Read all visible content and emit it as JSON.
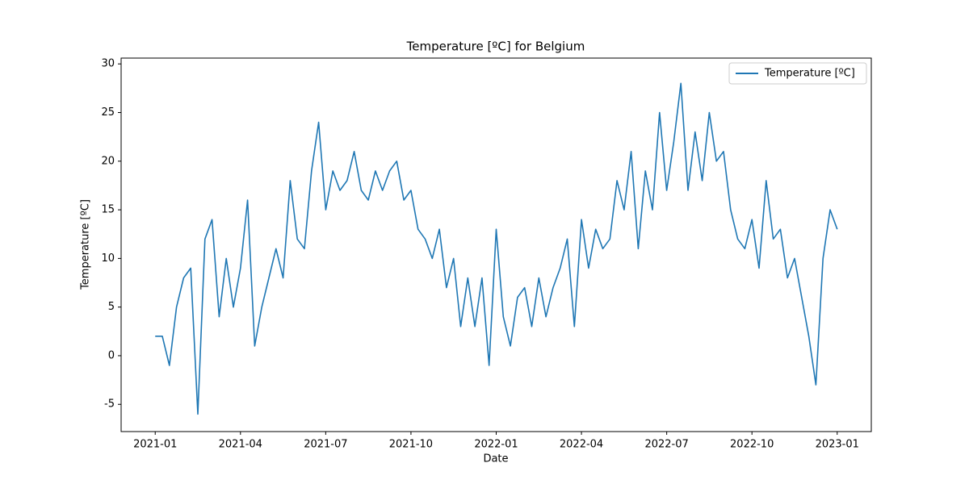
{
  "chart_data": {
    "type": "line",
    "title": "Temperature [ºC] for Belgium",
    "xlabel": "Date",
    "ylabel": "Temperature [ºC]",
    "x": [
      "2021-01",
      "2021-01",
      "2021-01",
      "2021-01",
      "2021-02",
      "2021-02",
      "2021-02",
      "2021-02",
      "2021-03",
      "2021-03",
      "2021-03",
      "2021-03",
      "2021-04",
      "2021-04",
      "2021-04",
      "2021-04",
      "2021-05",
      "2021-05",
      "2021-05",
      "2021-05",
      "2021-06",
      "2021-06",
      "2021-06",
      "2021-06",
      "2021-07",
      "2021-07",
      "2021-07",
      "2021-07",
      "2021-08",
      "2021-08",
      "2021-08",
      "2021-08",
      "2021-09",
      "2021-09",
      "2021-09",
      "2021-09",
      "2021-10",
      "2021-10",
      "2021-10",
      "2021-10",
      "2021-11",
      "2021-11",
      "2021-11",
      "2021-11",
      "2021-12",
      "2021-12",
      "2021-12",
      "2021-12",
      "2022-01",
      "2022-01",
      "2022-01",
      "2022-01",
      "2022-02",
      "2022-02",
      "2022-02",
      "2022-02",
      "2022-03",
      "2022-03",
      "2022-03",
      "2022-03",
      "2022-04",
      "2022-04",
      "2022-04",
      "2022-04",
      "2022-05",
      "2022-05",
      "2022-05",
      "2022-05",
      "2022-06",
      "2022-06",
      "2022-06",
      "2022-06",
      "2022-07",
      "2022-07",
      "2022-07",
      "2022-07",
      "2022-08",
      "2022-08",
      "2022-08",
      "2022-08",
      "2022-09",
      "2022-09",
      "2022-09",
      "2022-09",
      "2022-10",
      "2022-10",
      "2022-10",
      "2022-10",
      "2022-11",
      "2022-11",
      "2022-11",
      "2022-11",
      "2022-12",
      "2022-12",
      "2022-12",
      "2022-12",
      "2023-01"
    ],
    "series": [
      {
        "name": "Temperature [ºC]",
        "color": "#1f77b4",
        "values": [
          2,
          2,
          -1,
          5,
          8,
          9,
          -6,
          12,
          14,
          4,
          10,
          5,
          9,
          16,
          1,
          5,
          8,
          11,
          8,
          18,
          12,
          11,
          19,
          24,
          15,
          19,
          17,
          18,
          21,
          17,
          16,
          19,
          17,
          19,
          20,
          16,
          17,
          13,
          12,
          10,
          13,
          7,
          10,
          3,
          8,
          3,
          8,
          -1,
          13,
          4,
          1,
          6,
          7,
          3,
          8,
          4,
          7,
          9,
          12,
          3,
          14,
          9,
          13,
          11,
          12,
          18,
          15,
          21,
          11,
          19,
          15,
          25,
          17,
          22,
          28,
          17,
          23,
          18,
          25,
          20,
          21,
          15,
          12,
          11,
          14,
          9,
          18,
          12,
          13,
          8,
          10,
          6,
          2,
          -3,
          10,
          15,
          13
        ]
      }
    ],
    "xticks": [
      "2021-01",
      "2021-04",
      "2021-07",
      "2021-10",
      "2022-01",
      "2022-04",
      "2022-07",
      "2022-10",
      "2023-01"
    ],
    "ylim": [
      -7.8,
      30.6
    ],
    "yticks": [
      -5,
      0,
      5,
      10,
      15,
      20,
      25,
      30
    ],
    "grid": false,
    "legend": "upper right"
  }
}
